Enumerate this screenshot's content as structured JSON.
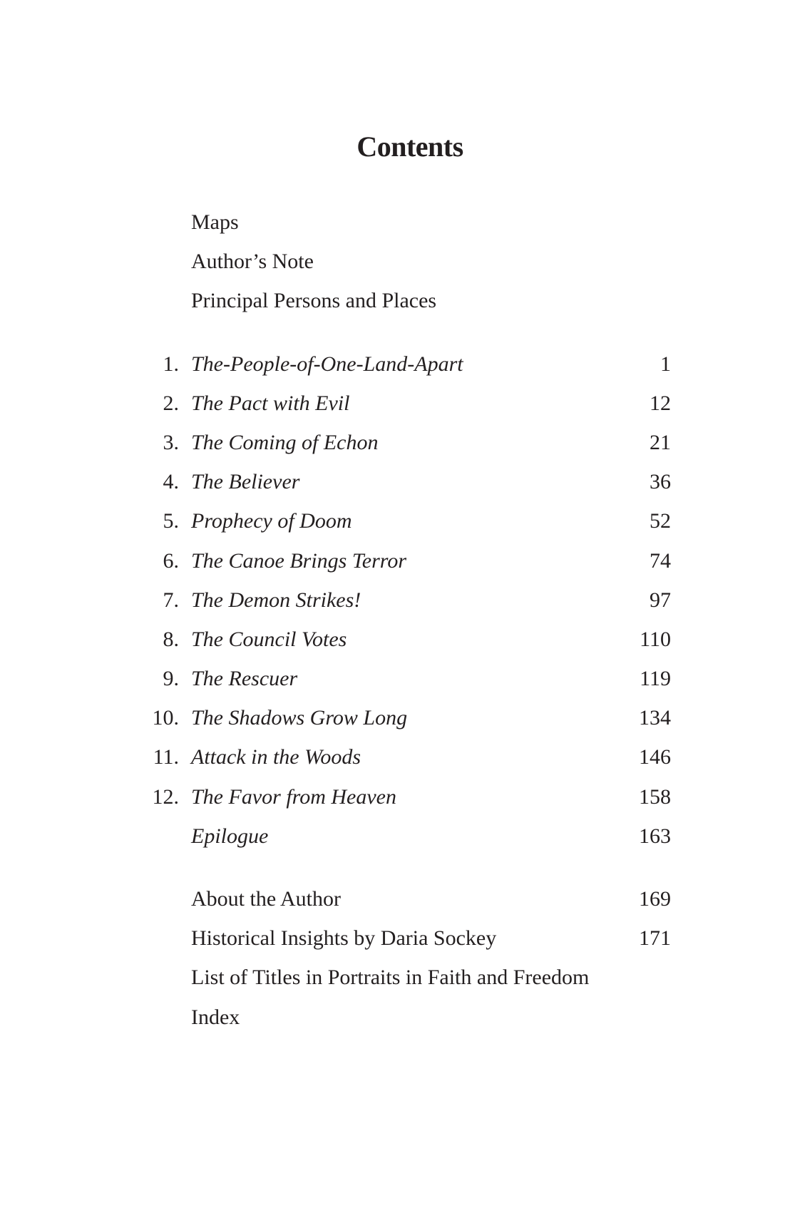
{
  "title": "Contents",
  "front_matter": [
    {
      "label": "Maps"
    },
    {
      "label": "Author’s Note"
    },
    {
      "label": "Principal Persons and Places"
    }
  ],
  "chapters": [
    {
      "number": "1.",
      "label": "The-People-of-One-Land-Apart",
      "page": "1"
    },
    {
      "number": "2.",
      "label": "The Pact with Evil",
      "page": "12"
    },
    {
      "number": "3.",
      "label": "The Coming of Echon",
      "page": "21"
    },
    {
      "number": "4.",
      "label": "The Believer",
      "page": "36"
    },
    {
      "number": "5.",
      "label": "Prophecy of Doom",
      "page": "52"
    },
    {
      "number": "6.",
      "label": "The Canoe Brings Terror",
      "page": "74"
    },
    {
      "number": "7.",
      "label": "The Demon Strikes!",
      "page": "97"
    },
    {
      "number": "8.",
      "label": "The Council Votes",
      "page": "110"
    },
    {
      "number": "9.",
      "label": "The Rescuer",
      "page": "119"
    },
    {
      "number": "10.",
      "label": "The Shadows Grow Long",
      "page": "134"
    },
    {
      "number": "11.",
      "label": "Attack in the Woods",
      "page": "146"
    },
    {
      "number": "12.",
      "label": "The Favor from Heaven",
      "page": "158"
    },
    {
      "number": "",
      "label": "Epilogue",
      "page": "163"
    }
  ],
  "back_matter": [
    {
      "label": "About the Author",
      "page": "169"
    },
    {
      "label": "Historical Insights by Daria Sockey",
      "page": "171"
    },
    {
      "label": "List of Titles in Portraits in Faith and Freedom",
      "page": ""
    },
    {
      "label": "Index",
      "page": ""
    }
  ]
}
